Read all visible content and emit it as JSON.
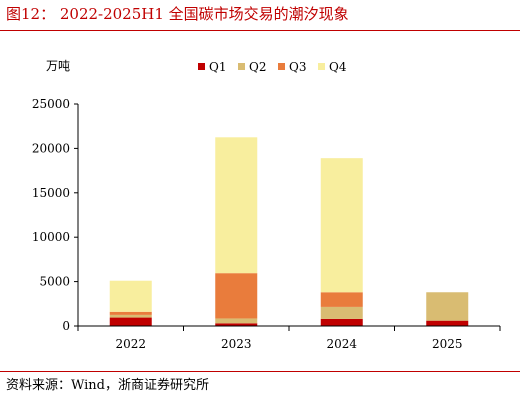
{
  "figure": {
    "title": "图12： 2022-2025H1 全国碳市场交易的潮汐现象",
    "source": "资料来源：Wind，浙商证券研究所"
  },
  "chart_data": {
    "type": "bar",
    "stacked": true,
    "unit_label": "万吨",
    "categories": [
      "2022",
      "2023",
      "2024",
      "2025"
    ],
    "series": [
      {
        "name": "Q1",
        "color": "#c00000",
        "values": [
          950,
          300,
          800,
          600
        ]
      },
      {
        "name": "Q2",
        "color": "#d9bc72",
        "values": [
          300,
          550,
          1350,
          3200
        ]
      },
      {
        "name": "Q3",
        "color": "#e97c3c",
        "values": [
          350,
          5100,
          1650,
          0
        ]
      },
      {
        "name": "Q4",
        "color": "#f8ee9e",
        "values": [
          3500,
          15300,
          15100,
          0
        ]
      }
    ],
    "ylim": [
      0,
      25000
    ],
    "yticks": [
      0,
      5000,
      10000,
      15000,
      20000,
      25000
    ],
    "grid": false,
    "legend": "top-right"
  }
}
